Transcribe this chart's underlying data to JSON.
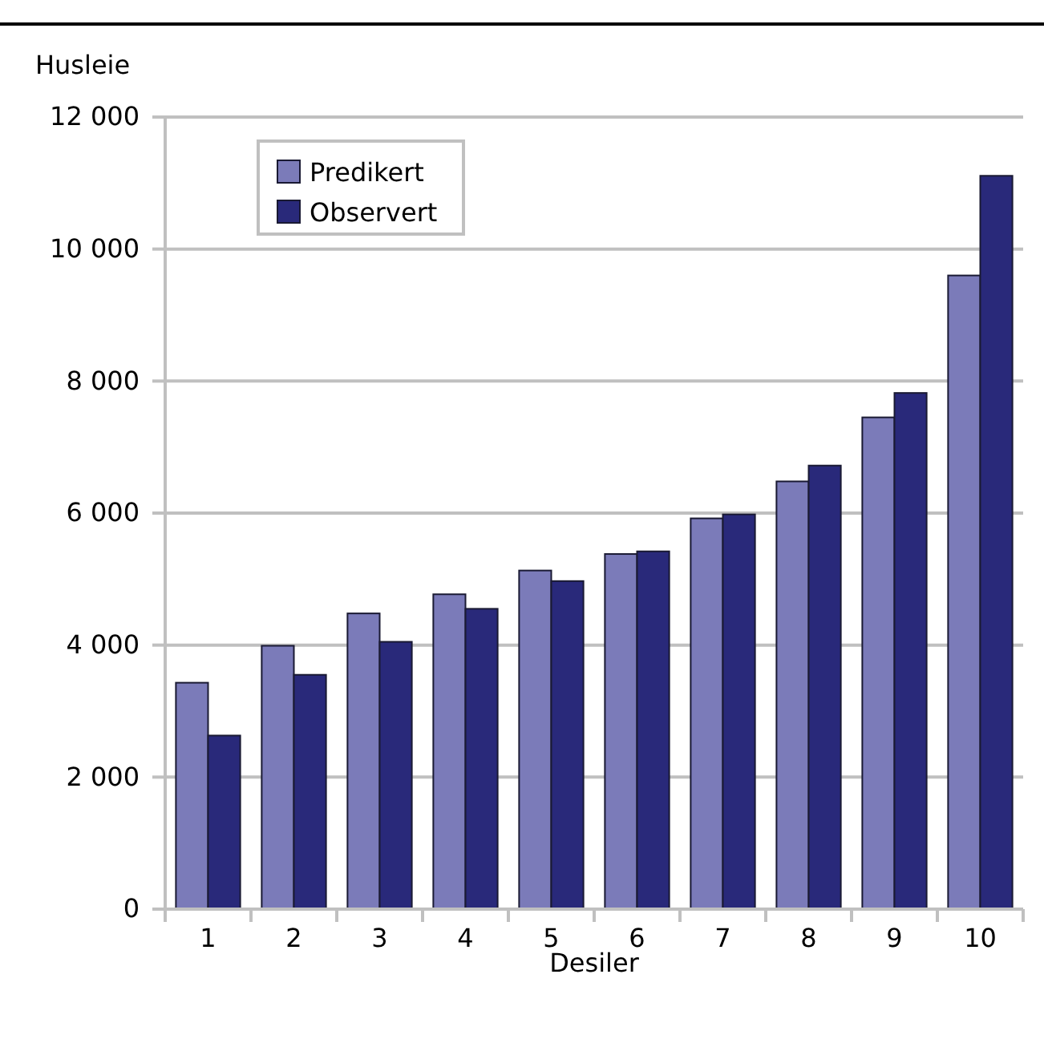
{
  "chart_data": {
    "type": "bar",
    "ylabel": "Husleie",
    "xlabel": "Desiler",
    "categories": [
      "1",
      "2",
      "3",
      "4",
      "5",
      "6",
      "7",
      "8",
      "9",
      "10"
    ],
    "series": [
      {
        "name": "Predikert",
        "color": "#7b7bb9",
        "values": [
          3430,
          3990,
          4480,
          4770,
          5130,
          5380,
          5920,
          6480,
          7450,
          9600
        ]
      },
      {
        "name": "Observert",
        "color": "#29297a",
        "values": [
          2630,
          3550,
          4050,
          4550,
          4970,
          5420,
          5980,
          6720,
          7820,
          11110
        ]
      }
    ],
    "ylim": [
      0,
      12000
    ],
    "yticks": [
      {
        "value": 0,
        "label": "0"
      },
      {
        "value": 2000,
        "label": "2 000"
      },
      {
        "value": 4000,
        "label": "4 000"
      },
      {
        "value": 6000,
        "label": "6 000"
      },
      {
        "value": 8000,
        "label": "8 000"
      },
      {
        "value": 10000,
        "label": "10 000"
      },
      {
        "value": 12000,
        "label": "12 000"
      }
    ],
    "grid": "y",
    "legend": "top left"
  }
}
